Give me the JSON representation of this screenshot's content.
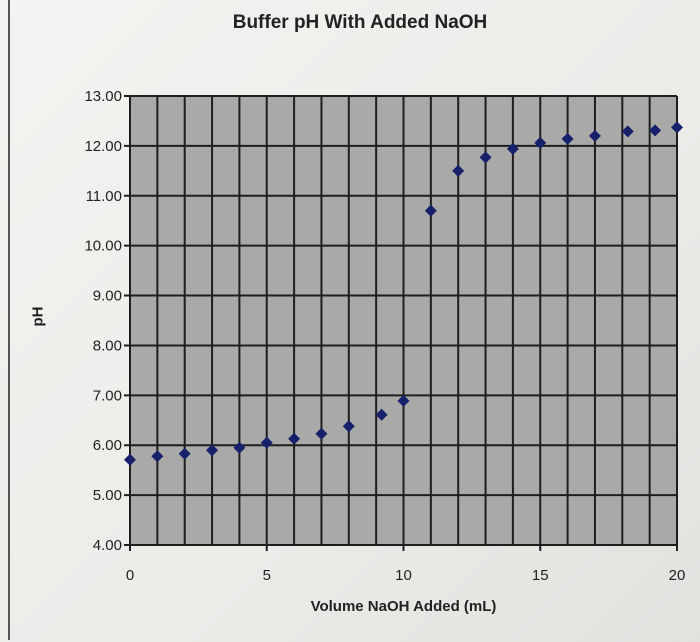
{
  "chart_data": {
    "type": "scatter",
    "title": "Buffer pH With Added NaOH",
    "xlabel": "Volume NaOH Added (mL)",
    "ylabel": "pH",
    "xlim": [
      0,
      20
    ],
    "ylim": [
      4,
      13
    ],
    "xticks": [
      "0",
      "5",
      "10",
      "15",
      "20"
    ],
    "yticks": [
      "4.00",
      "5.00",
      "6.00",
      "7.00",
      "8.00",
      "9.00",
      "10.00",
      "11.00",
      "12.00",
      "13.00"
    ],
    "grid": true,
    "legend": "none",
    "marker": "diamond",
    "colors": {
      "marker": "#16206b",
      "plot_bg": "#a9a9a7",
      "grid": "#1e1e1e"
    },
    "points": [
      {
        "x": 0,
        "y": 5.71
      },
      {
        "x": 1,
        "y": 5.78
      },
      {
        "x": 2,
        "y": 5.83
      },
      {
        "x": 3,
        "y": 5.9
      },
      {
        "x": 4,
        "y": 5.95
      },
      {
        "x": 5,
        "y": 6.05
      },
      {
        "x": 6,
        "y": 6.13
      },
      {
        "x": 7,
        "y": 6.23
      },
      {
        "x": 8,
        "y": 6.38
      },
      {
        "x": 9.2,
        "y": 6.61
      },
      {
        "x": 10,
        "y": 6.89
      },
      {
        "x": 11,
        "y": 10.7
      },
      {
        "x": 12,
        "y": 11.5
      },
      {
        "x": 13,
        "y": 11.77
      },
      {
        "x": 14,
        "y": 11.94
      },
      {
        "x": 15,
        "y": 12.06
      },
      {
        "x": 16,
        "y": 12.14
      },
      {
        "x": 17,
        "y": 12.2
      },
      {
        "x": 18.2,
        "y": 12.29
      },
      {
        "x": 19.2,
        "y": 12.31
      },
      {
        "x": 20,
        "y": 12.37
      }
    ]
  }
}
